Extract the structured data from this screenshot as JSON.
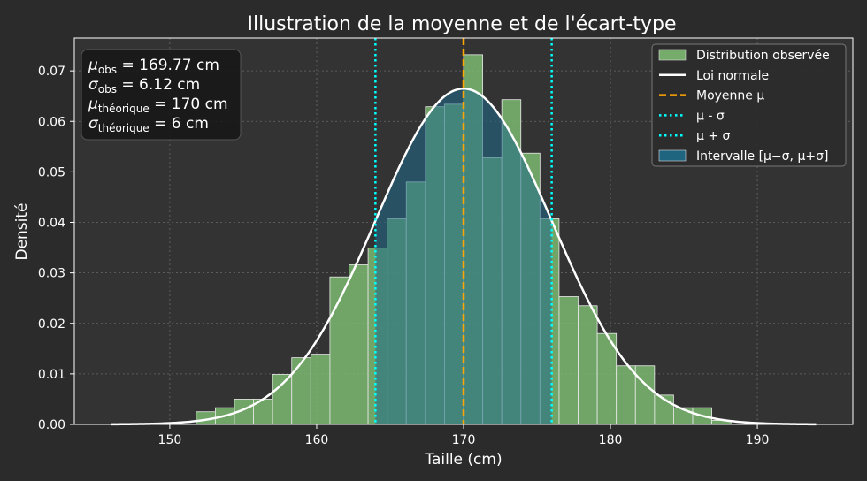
{
  "chart_data": {
    "type": "bar",
    "title": "Illustration de la moyenne et de l'écart-type",
    "xlabel": "Taille (cm)",
    "ylabel": "Densité",
    "xlim": [
      143.5,
      196.5
    ],
    "ylim": [
      0,
      0.0765
    ],
    "xticks": [
      150,
      160,
      170,
      180,
      190
    ],
    "yticks": [
      0.0,
      0.01,
      0.02,
      0.03,
      0.04,
      0.05,
      0.06,
      0.07
    ],
    "ytick_labels": [
      "0.00",
      "0.01",
      "0.02",
      "0.03",
      "0.04",
      "0.05",
      "0.06",
      "0.07"
    ],
    "grid": true,
    "legend_position": "top-right",
    "histogram": {
      "bin_edges": [
        151.8,
        153.1,
        154.4,
        155.7,
        157.0,
        158.3,
        159.6,
        160.9,
        162.2,
        163.5,
        164.8,
        166.1,
        167.4,
        168.7,
        170.0,
        171.3,
        172.6,
        173.9,
        175.2,
        176.5,
        177.8,
        179.1,
        180.4,
        181.7,
        183.0,
        184.3,
        185.6,
        186.9,
        188.2
      ],
      "values": [
        0.0025,
        0.0033,
        0.005,
        0.005,
        0.0099,
        0.0132,
        0.0139,
        0.0292,
        0.0316,
        0.0349,
        0.0407,
        0.048,
        0.0629,
        0.0634,
        0.0732,
        0.0528,
        0.0643,
        0.0537,
        0.0407,
        0.0253,
        0.0235,
        0.018,
        0.0116,
        0.0116,
        0.0058,
        0.0033,
        0.0033,
        0.0008
      ],
      "color": "#7dba72",
      "highlight_color": "#1f6b8a"
    },
    "normal": {
      "mu": 170,
      "sigma": 6,
      "x_range": [
        146,
        194
      ],
      "color": "#ffffff"
    },
    "mean_line": {
      "x": 170,
      "color": "#ffa500"
    },
    "sigma_lines": {
      "low": 164,
      "high": 176,
      "color": "#00ffff"
    },
    "stats": {
      "line1": {
        "symbol": "μ",
        "sub": "obs",
        "text": " = 169.77 cm"
      },
      "line2": {
        "symbol": "σ",
        "sub": "obs",
        "text": " = 6.12 cm"
      },
      "line3": {
        "symbol": "μ",
        "sub": "théorique",
        "text": " = 170 cm"
      },
      "line4": {
        "symbol": "σ",
        "sub": "théorique",
        "text": " = 6 cm"
      }
    },
    "legend": [
      {
        "label": "Distribution observée",
        "kind": "patch",
        "color": "#7dba72"
      },
      {
        "label": "Loi normale",
        "kind": "line",
        "color": "#ffffff"
      },
      {
        "label": "Moyenne μ",
        "kind": "dashed",
        "color": "#ffa500"
      },
      {
        "label": "μ - σ",
        "kind": "dotted",
        "color": "#00ffff"
      },
      {
        "label": "μ + σ",
        "kind": "dotted",
        "color": "#00ffff"
      },
      {
        "label": "Intervalle [μ−σ, μ+σ]",
        "kind": "patch",
        "color": "#1f6b8a"
      }
    ]
  }
}
